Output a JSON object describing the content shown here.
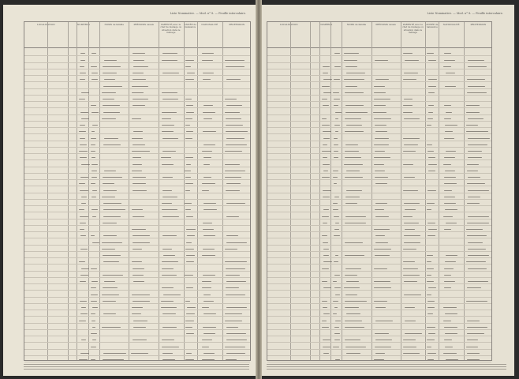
{
  "running_header": "Liste Nominative. — Mod. n° 8. — Feuille intercalaire.",
  "columns": {
    "localisation": "LOCALISATION",
    "numeros": "NUMÉROS",
    "nom": "NOMS de famille",
    "prenoms": "PRÉNOMS usuels",
    "parente": "PARENTÉ avec le chef de ménage ou situation dans le ménage",
    "annee": "ANNÉE de naissance",
    "nationalite": "NATIONALITÉ",
    "profession": "PROFESSION"
  }
}
